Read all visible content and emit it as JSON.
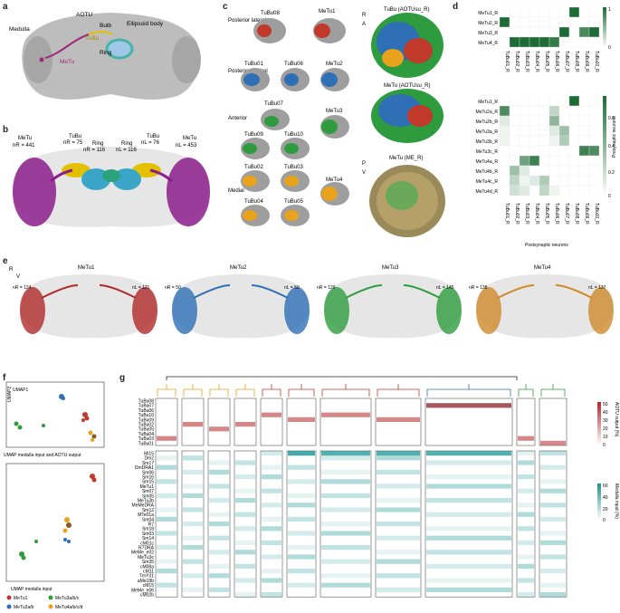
{
  "panels": {
    "a": {
      "letter": "a",
      "labels": [
        "Medulla",
        "AOTU",
        "Bulb",
        "TuBu",
        "Ellipsoid body",
        "Ring",
        "MeTu"
      ]
    },
    "b": {
      "letter": "b",
      "groups": [
        {
          "name": "MeTu",
          "n_label": "nR = 441"
        },
        {
          "name": "TuBu",
          "n_label": "nR = 75"
        },
        {
          "name": "Ring",
          "n_label": "nR = 116"
        },
        {
          "name": "Ring",
          "n_label": "nL = 116"
        },
        {
          "name": "TuBu",
          "n_label": "nL = 76"
        },
        {
          "name": "MeTu",
          "n_label": "nL = 453"
        }
      ]
    },
    "c": {
      "letter": "c",
      "rows": [
        {
          "label": "Posterior lateral",
          "cells": [
            "TuBu08",
            "MeTu1"
          ]
        },
        {
          "label": "Posterior central",
          "cells": [
            "TuBu01",
            "TuBu06",
            "MeTu2"
          ]
        },
        {
          "label": "Anterior",
          "cells": [
            "TuBu07",
            "TuBu09",
            "TuBu10",
            "MeTu3"
          ]
        },
        {
          "label": "Medial",
          "cells": [
            "TuBu02",
            "TuBu03",
            "TuBu04",
            "TuBu05",
            "MeTu4"
          ]
        }
      ],
      "views": [
        "TuBu (AOTUsu_R)",
        "MeTu (AOTUsu_R)",
        "MeTu (ME_R)"
      ],
      "axes": {
        "top_r": "R",
        "top_a": "A",
        "bottom_p": "P",
        "bottom_v": "V"
      }
    },
    "d": {
      "letter": "d",
      "top_rows": [
        "MeTu1_R",
        "MeTu2_R",
        "MeTu3_R",
        "MeTu4_R"
      ],
      "bottom_rows": [
        "MeTu1_R",
        "MeTu2a_R",
        "MeTu2b_R",
        "MeTu3a_R",
        "MeTu3b_R",
        "MeTu3c_R",
        "MeTu4a_R",
        "MeTu4b_R",
        "MeTu4c_R",
        "MeTu4d_R"
      ],
      "cols": [
        "TuBu01_R",
        "TuBu02_R",
        "TuBu03_R",
        "TuBu04_R",
        "TuBu05_R",
        "TuBu06_R",
        "TuBu07_R",
        "TuBu08_R",
        "TuBu09_R",
        "TuBu10_R"
      ],
      "ylabel": "Presynaptic neurons",
      "xlabel": "Postsynaptic neurons",
      "top_scale": [
        "1",
        "0"
      ],
      "bottom_scale": [
        "0.6",
        "0.4",
        "0.2",
        "0"
      ],
      "top_matrix": [
        [
          0,
          0,
          0,
          0,
          0,
          0,
          0,
          1,
          0,
          0
        ],
        [
          1,
          0,
          0,
          0,
          0,
          0,
          0,
          0,
          0,
          0
        ],
        [
          0,
          0,
          0,
          0,
          0,
          0,
          1,
          0,
          0.8,
          1
        ],
        [
          0,
          1,
          1,
          1,
          1,
          0.9,
          0,
          0,
          0,
          0
        ]
      ],
      "bottom_matrix": [
        [
          0,
          0,
          0,
          0,
          0,
          0,
          0,
          0.7,
          0,
          0
        ],
        [
          0.55,
          0,
          0,
          0,
          0,
          0.2,
          0,
          0,
          0,
          0
        ],
        [
          0.1,
          0,
          0,
          0,
          0,
          0.35,
          0,
          0,
          0,
          0
        ],
        [
          0.05,
          0,
          0,
          0,
          0,
          0.1,
          0.3,
          0,
          0,
          0
        ],
        [
          0.05,
          0,
          0,
          0,
          0,
          0.05,
          0.25,
          0,
          0,
          0
        ],
        [
          0,
          0,
          0,
          0,
          0,
          0,
          0,
          0,
          0.6,
          0.55
        ],
        [
          0,
          0,
          0.45,
          0.6,
          0,
          0,
          0,
          0,
          0,
          0
        ],
        [
          0,
          0.3,
          0.1,
          0,
          0,
          0,
          0,
          0,
          0,
          0
        ],
        [
          0,
          0.2,
          0.05,
          0.1,
          0.25,
          0,
          0,
          0,
          0,
          0
        ],
        [
          0,
          0.15,
          0.1,
          0,
          0.2,
          0.05,
          0,
          0,
          0,
          0
        ]
      ]
    },
    "e": {
      "letter": "e",
      "axis_r": "R",
      "axis_v": "V",
      "items": [
        {
          "name": "MeTu1",
          "nr": "nR = 124",
          "nl": "nL = 121"
        },
        {
          "name": "MeTu2",
          "nr": "nR = 50",
          "nl": "nL = 50"
        },
        {
          "name": "MeTu3",
          "nr": "nR = 129",
          "nl": "nL = 145"
        },
        {
          "name": "MeTu4",
          "nr": "nR = 138",
          "nl": "nL = 137"
        }
      ]
    },
    "f": {
      "letter": "f",
      "axis_x": "UMAP1",
      "axis_y": "UMAP2",
      "title_top": "UMAP medulla input and AOTU output",
      "title_bottom": "UMAP medulla input",
      "legend": [
        "MeTu1",
        "MeTu2a/b",
        "MeTu3a/b/c",
        "MeTu4a/b/c/d"
      ]
    },
    "g": {
      "letter": "g",
      "aotu_rows": [
        "TuBu08",
        "TuBu07",
        "TuBu06",
        "TuBu10",
        "TuBu09",
        "TuBu02",
        "TuBu05",
        "TuBu04",
        "TuBu03",
        "TuBu01"
      ],
      "medulla_rows": [
        "Mi15",
        "Dm2",
        "Sm17",
        "DmDRA1",
        "Sm06",
        "Sm16",
        "Sm15",
        "MeTu1",
        "Sm07",
        "Sm05",
        "MeTu3b",
        "MeMeDRA",
        "Sm12",
        "MTe01a",
        "Sm04",
        "R7",
        "Sm18",
        "Sm03",
        "Sm14",
        "cM01c",
        "R7DRA",
        "MeMe_e02",
        "MeTu3c",
        "Sm35",
        "cM08a",
        "cM11",
        "TmY31",
        "aMe19b",
        "cM15",
        "MeMe_e06",
        "cM02b"
      ],
      "aotu_legend_title": "AOTU output (%)",
      "aotu_ticks": [
        "50",
        "40",
        "30",
        "20",
        "10",
        "0"
      ],
      "medulla_legend_title": "Medulla input (%)",
      "medulla_ticks": [
        "60",
        "40",
        "20",
        "0"
      ],
      "colors": {
        "orange": "#e8a21c",
        "red": "#c0392b",
        "blue": "#2e6fb5",
        "green": "#2e9c3e",
        "teal": "#2a9d9c",
        "black": "#222222"
      }
    }
  }
}
